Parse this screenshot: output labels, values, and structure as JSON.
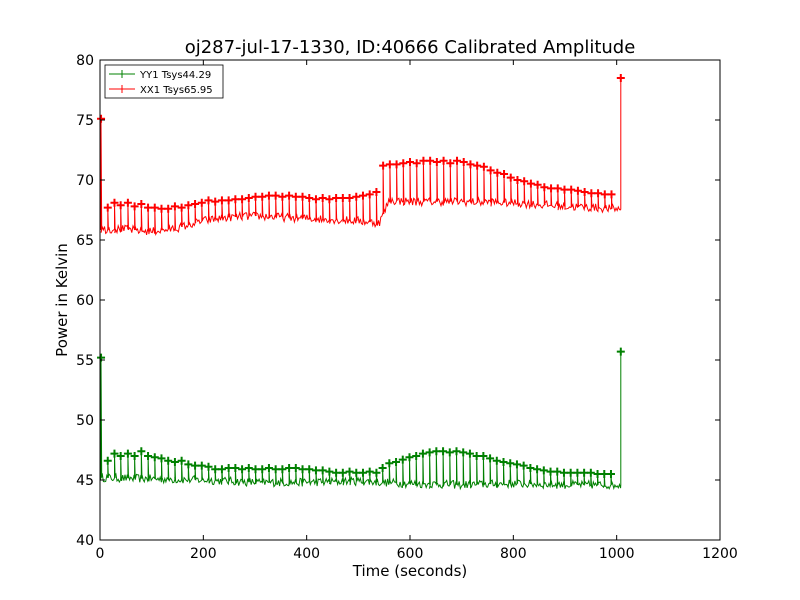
{
  "chart_data": {
    "type": "line",
    "title": "oj287-jul-17-1330, ID:40666 Calibrated Amplitude",
    "xlabel": "Time (seconds)",
    "ylabel": "Power in Kelvin",
    "xlim": [
      0,
      1200
    ],
    "ylim": [
      40,
      80
    ],
    "xticks": [
      "0",
      "200",
      "400",
      "600",
      "800",
      "1000",
      "1200"
    ],
    "yticks": [
      "40",
      "45",
      "50",
      "55",
      "60",
      "65",
      "70",
      "75",
      "80"
    ],
    "grid": false,
    "legend_position": "top-left",
    "marker": "+",
    "series": [
      {
        "name": "YY1 Tsys44.29",
        "color": "#008000",
        "baseline": [
          [
            0,
            45.2
          ],
          [
            100,
            45.1
          ],
          [
            200,
            45.0
          ],
          [
            300,
            44.8
          ],
          [
            400,
            44.8
          ],
          [
            500,
            44.9
          ],
          [
            600,
            44.7
          ],
          [
            700,
            44.6
          ],
          [
            800,
            44.7
          ],
          [
            900,
            44.6
          ],
          [
            1000,
            44.6
          ]
        ],
        "spikes": [
          [
            2,
            55.2
          ],
          [
            15,
            46.6
          ],
          [
            28,
            47.2
          ],
          [
            40,
            47.0
          ],
          [
            54,
            47.2
          ],
          [
            67,
            47.0
          ],
          [
            80,
            47.4
          ],
          [
            93,
            47.0
          ],
          [
            106,
            46.9
          ],
          [
            119,
            46.8
          ],
          [
            132,
            46.6
          ],
          [
            145,
            46.5
          ],
          [
            158,
            46.6
          ],
          [
            171,
            46.3
          ],
          [
            184,
            46.2
          ],
          [
            197,
            46.2
          ],
          [
            210,
            46.1
          ],
          [
            223,
            45.9
          ],
          [
            236,
            45.9
          ],
          [
            249,
            46.0
          ],
          [
            262,
            46.0
          ],
          [
            275,
            45.9
          ],
          [
            288,
            46.0
          ],
          [
            301,
            45.9
          ],
          [
            314,
            45.9
          ],
          [
            327,
            46.0
          ],
          [
            340,
            45.9
          ],
          [
            353,
            45.9
          ],
          [
            366,
            46.0
          ],
          [
            379,
            46.0
          ],
          [
            392,
            45.9
          ],
          [
            405,
            45.9
          ],
          [
            418,
            45.8
          ],
          [
            431,
            45.8
          ],
          [
            444,
            45.7
          ],
          [
            457,
            45.6
          ],
          [
            470,
            45.6
          ],
          [
            483,
            45.7
          ],
          [
            496,
            45.6
          ],
          [
            509,
            45.6
          ],
          [
            522,
            45.7
          ],
          [
            535,
            45.6
          ],
          [
            547,
            46.0
          ],
          [
            560,
            46.4
          ],
          [
            573,
            46.5
          ],
          [
            586,
            46.7
          ],
          [
            599,
            46.9
          ],
          [
            612,
            47.0
          ],
          [
            625,
            47.2
          ],
          [
            638,
            47.3
          ],
          [
            651,
            47.4
          ],
          [
            664,
            47.4
          ],
          [
            677,
            47.3
          ],
          [
            690,
            47.4
          ],
          [
            703,
            47.3
          ],
          [
            716,
            47.2
          ],
          [
            729,
            47.0
          ],
          [
            742,
            47.0
          ],
          [
            755,
            46.8
          ],
          [
            768,
            46.6
          ],
          [
            781,
            46.5
          ],
          [
            794,
            46.4
          ],
          [
            807,
            46.3
          ],
          [
            820,
            46.2
          ],
          [
            833,
            46.0
          ],
          [
            846,
            45.9
          ],
          [
            859,
            45.8
          ],
          [
            872,
            45.7
          ],
          [
            885,
            45.7
          ],
          [
            898,
            45.6
          ],
          [
            911,
            45.6
          ],
          [
            924,
            45.6
          ],
          [
            937,
            45.6
          ],
          [
            950,
            45.6
          ],
          [
            963,
            45.5
          ],
          [
            976,
            45.5
          ],
          [
            989,
            45.5
          ],
          [
            1008,
            55.7
          ]
        ]
      },
      {
        "name": "XX1 Tsys65.95",
        "color": "#ff0000",
        "baseline": [
          [
            0,
            65.9
          ],
          [
            50,
            65.9
          ],
          [
            100,
            65.7
          ],
          [
            150,
            66.0
          ],
          [
            200,
            66.6
          ],
          [
            250,
            66.9
          ],
          [
            300,
            67.0
          ],
          [
            350,
            66.9
          ],
          [
            400,
            66.8
          ],
          [
            450,
            66.7
          ],
          [
            500,
            66.6
          ],
          [
            540,
            66.4
          ],
          [
            560,
            68.3
          ],
          [
            600,
            68.2
          ],
          [
            700,
            68.2
          ],
          [
            800,
            68.1
          ],
          [
            900,
            67.8
          ],
          [
            1000,
            67.6
          ]
        ],
        "spikes": [
          [
            2,
            75.1
          ],
          [
            15,
            67.7
          ],
          [
            28,
            68.1
          ],
          [
            40,
            67.9
          ],
          [
            54,
            68.1
          ],
          [
            67,
            67.8
          ],
          [
            80,
            68.0
          ],
          [
            93,
            67.7
          ],
          [
            106,
            67.7
          ],
          [
            119,
            67.6
          ],
          [
            132,
            67.6
          ],
          [
            145,
            67.8
          ],
          [
            158,
            67.7
          ],
          [
            171,
            67.9
          ],
          [
            184,
            68.0
          ],
          [
            197,
            68.1
          ],
          [
            210,
            68.3
          ],
          [
            223,
            68.2
          ],
          [
            236,
            68.3
          ],
          [
            249,
            68.3
          ],
          [
            262,
            68.4
          ],
          [
            275,
            68.4
          ],
          [
            288,
            68.5
          ],
          [
            301,
            68.6
          ],
          [
            314,
            68.6
          ],
          [
            327,
            68.7
          ],
          [
            340,
            68.7
          ],
          [
            353,
            68.6
          ],
          [
            366,
            68.7
          ],
          [
            379,
            68.6
          ],
          [
            392,
            68.6
          ],
          [
            405,
            68.5
          ],
          [
            418,
            68.4
          ],
          [
            431,
            68.5
          ],
          [
            444,
            68.4
          ],
          [
            457,
            68.5
          ],
          [
            470,
            68.5
          ],
          [
            483,
            68.5
          ],
          [
            496,
            68.6
          ],
          [
            509,
            68.7
          ],
          [
            522,
            68.8
          ],
          [
            535,
            69.0
          ],
          [
            548,
            71.2
          ],
          [
            561,
            71.3
          ],
          [
            574,
            71.3
          ],
          [
            587,
            71.4
          ],
          [
            600,
            71.5
          ],
          [
            613,
            71.4
          ],
          [
            626,
            71.6
          ],
          [
            639,
            71.6
          ],
          [
            652,
            71.5
          ],
          [
            665,
            71.6
          ],
          [
            678,
            71.4
          ],
          [
            691,
            71.6
          ],
          [
            704,
            71.5
          ],
          [
            717,
            71.3
          ],
          [
            730,
            71.2
          ],
          [
            743,
            71.1
          ],
          [
            756,
            70.8
          ],
          [
            769,
            70.6
          ],
          [
            782,
            70.5
          ],
          [
            795,
            70.2
          ],
          [
            808,
            70.0
          ],
          [
            821,
            69.9
          ],
          [
            834,
            69.7
          ],
          [
            847,
            69.6
          ],
          [
            860,
            69.4
          ],
          [
            873,
            69.3
          ],
          [
            886,
            69.3
          ],
          [
            899,
            69.2
          ],
          [
            912,
            69.2
          ],
          [
            925,
            69.1
          ],
          [
            938,
            69.0
          ],
          [
            951,
            68.9
          ],
          [
            964,
            68.9
          ],
          [
            977,
            68.8
          ],
          [
            990,
            68.8
          ],
          [
            1008,
            78.5
          ]
        ]
      }
    ]
  }
}
